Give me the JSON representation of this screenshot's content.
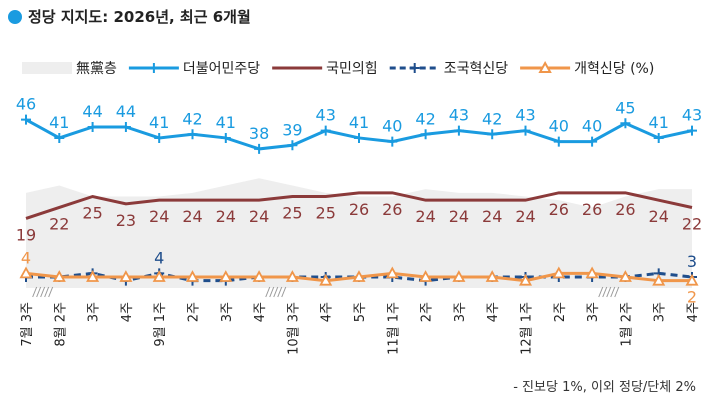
{
  "chart_data": {
    "type": "line",
    "title": "정당 지지도: 2026년, 최근 6개월",
    "note": "- 진보당 1%, 이외 정당/단체 2%",
    "categories": [
      "7월 3주",
      "8월 2주",
      "3주",
      "4주",
      "9월 1주",
      "2주",
      "3주",
      "4주",
      "10월 3주",
      "4주",
      "5주",
      "11월 1주",
      "2주",
      "3주",
      "4주",
      "12월 1주",
      "2주",
      "3주",
      "1월 2주",
      "3주",
      "4주"
    ],
    "ylim": [
      0,
      50
    ],
    "grid": false,
    "legend": "top",
    "series": [
      {
        "name": "無黨층",
        "type": "area",
        "color": "#eeeeee",
        "labeled": false,
        "values": [
          26,
          28,
          25,
          25,
          25,
          26,
          28,
          30,
          28,
          26,
          25,
          25,
          27,
          26,
          26,
          25,
          24,
          22,
          25,
          27,
          27
        ]
      },
      {
        "name": "더불어민주당",
        "color": "#1a9be0",
        "marker": "plus",
        "labeled": true,
        "label_pos": "above",
        "values": [
          46,
          41,
          44,
          44,
          41,
          42,
          41,
          38,
          39,
          43,
          41,
          40,
          42,
          43,
          42,
          43,
          40,
          40,
          45,
          41,
          43
        ]
      },
      {
        "name": "국민의힘",
        "color": "#8b3a3a",
        "marker": "none",
        "labeled": true,
        "label_pos": "below",
        "values": [
          19,
          22,
          25,
          23,
          24,
          24,
          24,
          24,
          25,
          25,
          26,
          26,
          24,
          24,
          24,
          24,
          26,
          26,
          26,
          24,
          22
        ]
      },
      {
        "name": "조국혁신당",
        "color": "#1f4e8c",
        "dashed": true,
        "marker": "plus",
        "labeled_idx": [
          4,
          20
        ],
        "label_pos": "above",
        "values": [
          3,
          3,
          4,
          2,
          4,
          2,
          2,
          3,
          3,
          3,
          3,
          3,
          2,
          3,
          3,
          3,
          3,
          3,
          3,
          4,
          3
        ]
      },
      {
        "name": "개혁신당 (%)",
        "color": "#f0964a",
        "marker": "triangle",
        "labeled_idx": [
          0,
          20
        ],
        "label_pos_list": [
          "above",
          "below"
        ],
        "values": [
          4,
          3,
          3,
          3,
          3,
          3,
          3,
          3,
          3,
          2,
          3,
          4,
          3,
          3,
          3,
          2,
          4,
          4,
          3,
          2,
          2
        ]
      }
    ],
    "axis_breaks_after": [
      0,
      7,
      17
    ]
  }
}
